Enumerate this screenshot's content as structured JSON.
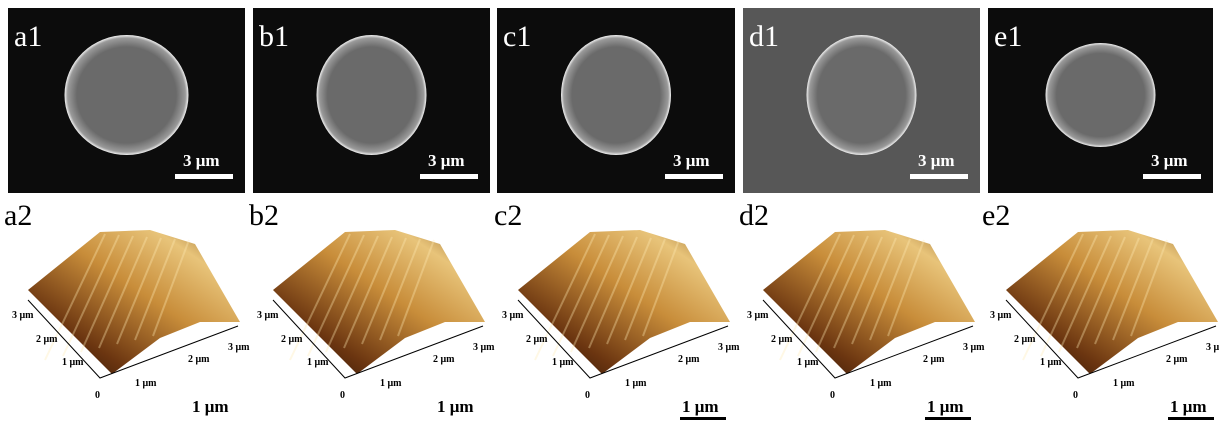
{
  "sem_panels": [
    {
      "label": "a1",
      "scale": "3 μm"
    },
    {
      "label": "b1",
      "scale": "3 μm"
    },
    {
      "label": "c1",
      "scale": "3 μm"
    },
    {
      "label": "d1",
      "scale": "3 μm"
    },
    {
      "label": "e1",
      "scale": "3 μm"
    }
  ],
  "afm_panels": [
    {
      "label": "a2",
      "left_axis": [
        "3 μm",
        "2 μm",
        "1 μm"
      ],
      "origin": "0",
      "right_axis": [
        "1 μm",
        "2 μm",
        "3 μm"
      ],
      "scale": "1 μm"
    },
    {
      "label": "b2",
      "left_axis": [
        "3 μm",
        "2 μm",
        "1 μm"
      ],
      "origin": "0",
      "right_axis": [
        "1 μm",
        "2 μm",
        "3 μm"
      ],
      "scale": "1 μm"
    },
    {
      "label": "c2",
      "left_axis": [
        "3 μm",
        "2 μm",
        "1 μm"
      ],
      "origin": "0",
      "right_axis": [
        "1 μm",
        "2 μm",
        "3 μm"
      ],
      "scale": "1 μm"
    },
    {
      "label": "d2",
      "left_axis": [
        "3 μm",
        "2 μm",
        "1 μm"
      ],
      "origin": "0",
      "right_axis": [
        "1 μm",
        "2 μm",
        "3 μm"
      ],
      "scale": "1 μm"
    },
    {
      "label": "e2",
      "left_axis": [
        "3 μm",
        "2 μm",
        "1 μm"
      ],
      "origin": "0",
      "right_axis": [
        "1 μm",
        "2 μm",
        "3 μ"
      ],
      "scale": "1 μm"
    }
  ]
}
